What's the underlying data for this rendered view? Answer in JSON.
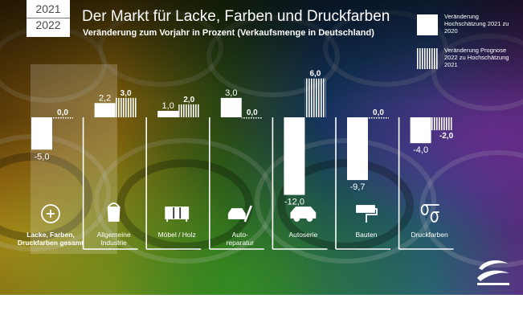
{
  "header": {
    "year_current": "2021",
    "year_next": "2022",
    "title": "Der Markt für Lacke, Farben und Druckfarben",
    "subtitle": "Veränderung zum Vorjahr in Prozent (Verkaufsmenge in Deutschland)"
  },
  "legend": {
    "solid": "Veränderung Hochschätzung 2021 zu 2020",
    "striped": "Veränderung Prognose 2022 zu Hochschätzung 2021"
  },
  "colors": {
    "bars": "#ffffff",
    "text": "#ffffff"
  },
  "chart_data": {
    "type": "bar",
    "title": "Der Markt für Lacke, Farben und Druckfarben",
    "subtitle": "Veränderung zum Vorjahr in Prozent (Verkaufsmenge in Deutschland)",
    "categories": [
      "Lacke, Farben, Druckfarben gesamt",
      "Allgemeine Industrie",
      "Möbel / Holz",
      "Auto-reparatur",
      "Autoserie",
      "Bauten",
      "Druckfarben"
    ],
    "category_icons": [
      "plus-circle-icon",
      "paint-bucket-icon",
      "furniture-icon",
      "mechanic-icon",
      "car-icon",
      "paint-roller-icon",
      "paper-rolls-icon"
    ],
    "series": [
      {
        "name": "Veränderung Hochschätzung 2021 zu 2020",
        "style": "solid",
        "values": [
          -5.0,
          2.2,
          1.0,
          3.0,
          -12.0,
          -9.7,
          -4.0
        ],
        "labels": [
          "-5,0",
          "2,2",
          "1,0",
          "3,0",
          "-12,0",
          "-9,7",
          "-4,0"
        ]
      },
      {
        "name": "Veränderung Prognose 2022 zu Hochschätzung 2021",
        "style": "striped",
        "values": [
          0.0,
          3.0,
          2.0,
          0.0,
          6.0,
          0.0,
          -2.0
        ],
        "labels": [
          "0,0",
          "3,0",
          "2,0",
          "0,0",
          "6,0",
          "0,0",
          "-2,0"
        ]
      }
    ],
    "ylim": [
      -13,
      7
    ],
    "legend_position": "top-right",
    "grid": false
  }
}
